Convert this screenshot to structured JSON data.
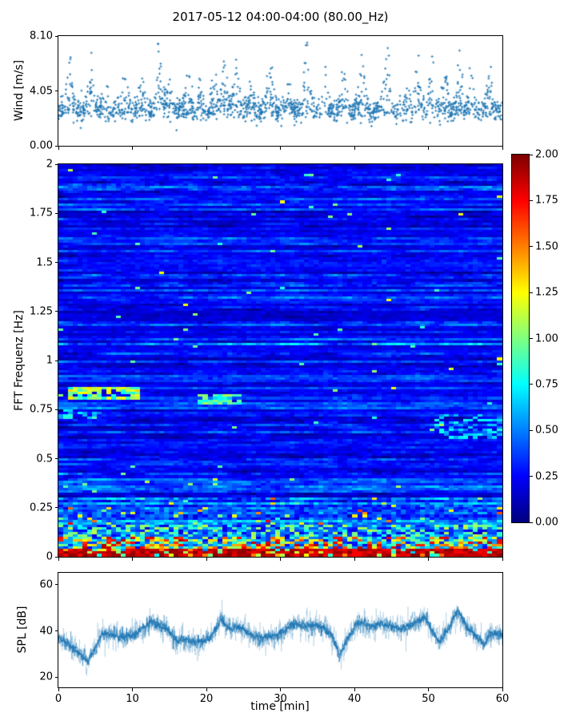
{
  "title": "2017-05-12 04:00-04:00 (80.00_Hz)",
  "figure": {
    "background": "#ffffff",
    "text_color": "#000000",
    "axis_color": "#000000",
    "accent_blue": "#1f77b4"
  },
  "chart_data": [
    {
      "id": "wind",
      "type": "scatter",
      "ylabel": "Wind [m/s]",
      "ylim": [
        0,
        8.1
      ],
      "yticks": [
        {
          "v": 0.0,
          "label": "0.00"
        },
        {
          "v": 4.05,
          "label": "4.05"
        },
        {
          "v": 8.1,
          "label": "8.10"
        }
      ],
      "xlim": [
        0,
        60
      ],
      "xticks": [
        0,
        10,
        20,
        30,
        40,
        50,
        60
      ],
      "xtick_labels": null,
      "marker": "plus",
      "color": "#1f77b4",
      "synthesis": {
        "seed": 42,
        "n": 1800,
        "baseline": 2.55,
        "noise_sd": 0.42,
        "gust_width": 0.55,
        "low_outlier_p": 0.012,
        "ymin": 1.15,
        "ymax": 8.0,
        "gusts": [
          [
            1.5,
            7.3
          ],
          [
            4.3,
            6.4
          ],
          [
            6.3,
            5.4
          ],
          [
            9.0,
            5.6
          ],
          [
            11.2,
            5.0
          ],
          [
            13.5,
            7.8
          ],
          [
            14.8,
            6.6
          ],
          [
            17.5,
            5.9
          ],
          [
            19.0,
            5.0
          ],
          [
            21.0,
            5.5
          ],
          [
            22.5,
            6.6
          ],
          [
            24.0,
            6.2
          ],
          [
            26.0,
            5.3
          ],
          [
            28.7,
            7.2
          ],
          [
            31.0,
            5.4
          ],
          [
            33.6,
            7.6
          ],
          [
            36.0,
            6.2
          ],
          [
            38.6,
            5.7
          ],
          [
            41.0,
            6.9
          ],
          [
            44.3,
            7.9
          ],
          [
            47.0,
            5.6
          ],
          [
            48.5,
            6.4
          ],
          [
            50.5,
            7.0
          ],
          [
            52.3,
            5.7
          ],
          [
            54.3,
            6.4
          ],
          [
            55.8,
            6.0
          ],
          [
            58.3,
            6.4
          ]
        ]
      }
    },
    {
      "id": "spectrogram",
      "type": "heatmap",
      "ylabel": "FFT Frequenz [Hz]",
      "ylim": [
        0,
        2
      ],
      "yticks": [
        {
          "v": 2,
          "label": "2"
        },
        {
          "v": 1.75,
          "label": "1.75"
        },
        {
          "v": 1.5,
          "label": "1.5"
        },
        {
          "v": 1.25,
          "label": "1.25"
        },
        {
          "v": 1,
          "label": "1"
        },
        {
          "v": 0.75,
          "label": "0.75"
        },
        {
          "v": 0.5,
          "label": "0.5"
        },
        {
          "v": 0.25,
          "label": "0.25"
        },
        {
          "v": 0,
          "label": "0"
        }
      ],
      "xlim": [
        0,
        60
      ],
      "xticks": [
        0,
        10,
        20,
        30,
        40,
        50,
        60
      ],
      "xtick_labels": null,
      "colormap": "jet",
      "vlim": [
        0,
        2
      ],
      "colorbar": {
        "ticks": [
          {
            "v": 2.0,
            "label": "2.00"
          },
          {
            "v": 1.75,
            "label": "1.75"
          },
          {
            "v": 1.5,
            "label": "1.50"
          },
          {
            "v": 1.25,
            "label": "1.25"
          },
          {
            "v": 1.0,
            "label": "1.00"
          },
          {
            "v": 0.75,
            "label": "0.75"
          },
          {
            "v": 0.5,
            "label": "0.50"
          },
          {
            "v": 0.25,
            "label": "0.25"
          },
          {
            "v": 0.0,
            "label": "0.00"
          }
        ]
      },
      "synthesis": {
        "seed": 1337,
        "cols": 92,
        "rows": 160,
        "cell_noise": 0.1,
        "row_types": [
          {
            "p": 0.6,
            "base": [
              0.15,
              0.3
            ],
            "amp": [
              0.06,
              0.18
            ]
          },
          {
            "p": 0.32,
            "base": [
              0.26,
              0.44
            ],
            "amp": [
              0.12,
              0.28
            ]
          },
          {
            "p": 0.08,
            "base": [
              0.38,
              0.56
            ],
            "amp": [
              0.18,
              0.34
            ]
          }
        ],
        "pop_p": 0.006,
        "pop_v": [
          0.8,
          1.3
        ],
        "bands": [
          {
            "fmax": 0.035,
            "set": [
              1.75,
              2.0
            ],
            "alt_p": 0.18,
            "alt": [
              0.5,
              1.6
            ]
          },
          {
            "fmax": 0.09,
            "set": [
              0.5,
              1.9
            ],
            "alt_p": 0.3,
            "alt": [
              0.2,
              0.7
            ]
          },
          {
            "fmax": 0.16,
            "set": [
              0.3,
              1.15
            ],
            "alt_p": 0.35,
            "alt": [
              0.15,
              0.5
            ]
          },
          {
            "fmax": 0.3,
            "add": [
              0,
              0.3
            ],
            "hot_p": 0.035,
            "hot": [
              0.85,
              1.8
            ]
          }
        ],
        "features": [
          {
            "f0": 0.8,
            "f1": 0.86,
            "t0": 1.0,
            "t1": 11.0,
            "v": [
              0.7,
              1.35
            ],
            "p": 0.8
          },
          {
            "f0": 0.77,
            "f1": 0.83,
            "t0": 19.0,
            "t1": 25.0,
            "v": [
              0.6,
              1.1
            ],
            "p": 0.8
          },
          {
            "f0": 0.6,
            "f1": 0.72,
            "t0": 51.0,
            "t1": 60.0,
            "v": [
              0.45,
              0.8
            ],
            "p": 0.35
          },
          {
            "f0": 0.7,
            "f1": 0.76,
            "t0": 0.0,
            "t1": 6.0,
            "v": [
              0.5,
              0.9
            ],
            "p": 0.4
          }
        ]
      }
    },
    {
      "id": "spl",
      "type": "line",
      "ylabel": "SPL [dB]",
      "xlabel": "time [min]",
      "ylim": [
        15.5,
        65.2
      ],
      "yticks": [
        {
          "v": 60,
          "label": "60"
        },
        {
          "v": 40,
          "label": "40"
        },
        {
          "v": 20,
          "label": "20"
        }
      ],
      "xlim": [
        0,
        60
      ],
      "xticks": [
        0,
        10,
        20,
        30,
        40,
        50,
        60
      ],
      "xtick_labels": [
        "0",
        "10",
        "20",
        "30",
        "40",
        "50",
        "60"
      ],
      "color": "#1f77b4",
      "anchors": [
        [
          0,
          37
        ],
        [
          1.5,
          34
        ],
        [
          3,
          30
        ],
        [
          4,
          27
        ],
        [
          5,
          33
        ],
        [
          6,
          39
        ],
        [
          7.5,
          38
        ],
        [
          9,
          37
        ],
        [
          10,
          38
        ],
        [
          11,
          40
        ],
        [
          12.5,
          44
        ],
        [
          13.5,
          42
        ],
        [
          14.5,
          41
        ],
        [
          16,
          36
        ],
        [
          17.5,
          36
        ],
        [
          19,
          35
        ],
        [
          20.5,
          37
        ],
        [
          22,
          45
        ],
        [
          23,
          41
        ],
        [
          24.5,
          42
        ],
        [
          26,
          38
        ],
        [
          27.5,
          37
        ],
        [
          29,
          38
        ],
        [
          30.5,
          40
        ],
        [
          31.5,
          43
        ],
        [
          33,
          42
        ],
        [
          34.5,
          43
        ],
        [
          36,
          41
        ],
        [
          37,
          38
        ],
        [
          38,
          29
        ],
        [
          39,
          36
        ],
        [
          40.5,
          44
        ],
        [
          42,
          42
        ],
        [
          43.5,
          43
        ],
        [
          45,
          42
        ],
        [
          46.5,
          41
        ],
        [
          48,
          43
        ],
        [
          49.5,
          46
        ],
        [
          50.5,
          40
        ],
        [
          51.5,
          35
        ],
        [
          52.5,
          40
        ],
        [
          54,
          49
        ],
        [
          55,
          42
        ],
        [
          56,
          39
        ],
        [
          57.5,
          34
        ],
        [
          58.5,
          39
        ],
        [
          60,
          38
        ]
      ],
      "synthesis": {
        "seed": 7,
        "n": 2600,
        "spike_p": 0.012,
        "spike_sd": 5.0,
        "clip": [
          17,
          64
        ],
        "layers": [
          {
            "alpha": 0.2,
            "sd": 5.0
          },
          {
            "alpha": 0.45,
            "sd": 2.8
          },
          {
            "alpha": 0.95,
            "sd": 1.3
          }
        ]
      }
    }
  ]
}
